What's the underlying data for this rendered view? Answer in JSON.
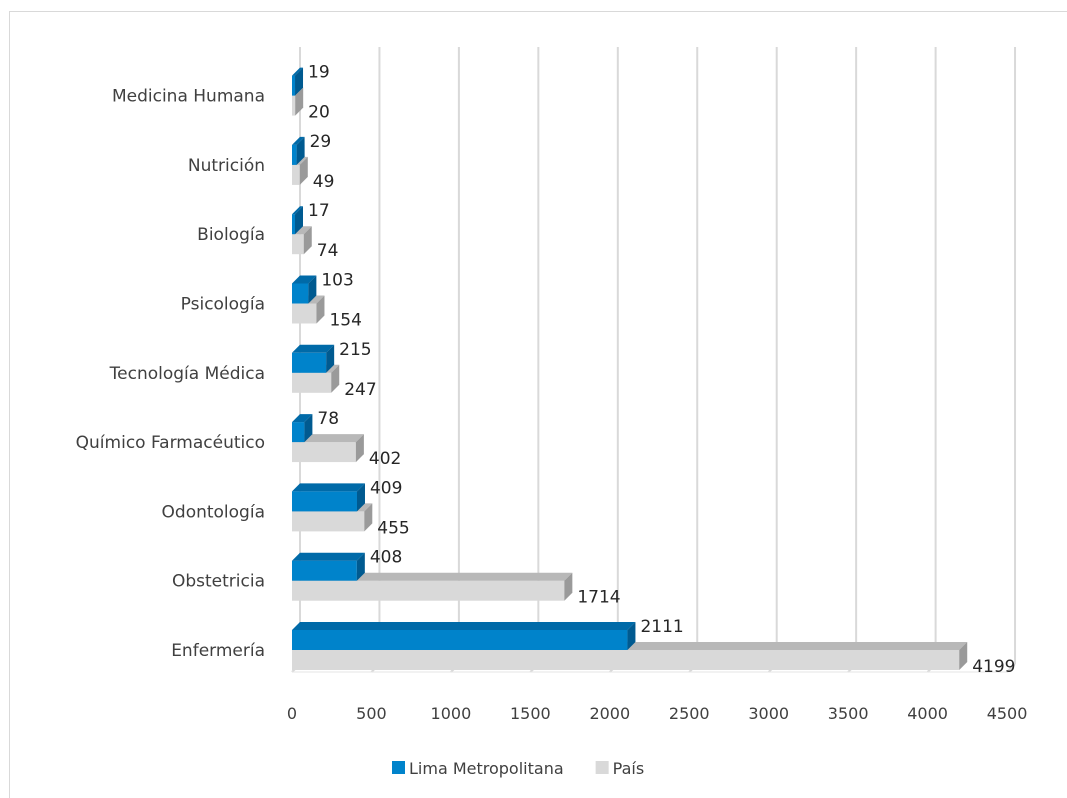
{
  "chart_data": {
    "type": "bar",
    "orientation": "horizontal",
    "style": "3d-clustered",
    "categories": [
      "Enfermería",
      "Obstetricia",
      "Odontología",
      "Químico Farmacéutico",
      "Tecnología Médica",
      "Psicología",
      "Biología",
      "Nutrición",
      "Medicina Humana"
    ],
    "series": [
      {
        "name": "Lima Metropolitana",
        "values": [
          2111,
          408,
          409,
          78,
          215,
          103,
          17,
          29,
          19
        ],
        "color": "#0083cb",
        "top_color": "#006aa8",
        "side_color": "#005a90"
      },
      {
        "name": "País",
        "values": [
          4199,
          1714,
          455,
          402,
          247,
          154,
          74,
          49,
          20
        ],
        "color": "#d9d9d9",
        "top_color": "#b8b8b8",
        "side_color": "#9a9a9a"
      }
    ],
    "xlim": [
      0,
      4500
    ],
    "xticks": [
      0,
      500,
      1000,
      1500,
      2000,
      2500,
      3000,
      3500,
      4000,
      4500
    ],
    "xtick_labels": [
      "0",
      "500",
      "1000",
      "1500",
      "2000",
      "2500",
      "3000",
      "3500",
      "4000",
      "4500"
    ],
    "grid": "vertical",
    "grid_color": "#d9d9d9",
    "legend": "bottom",
    "data_labels": true
  }
}
